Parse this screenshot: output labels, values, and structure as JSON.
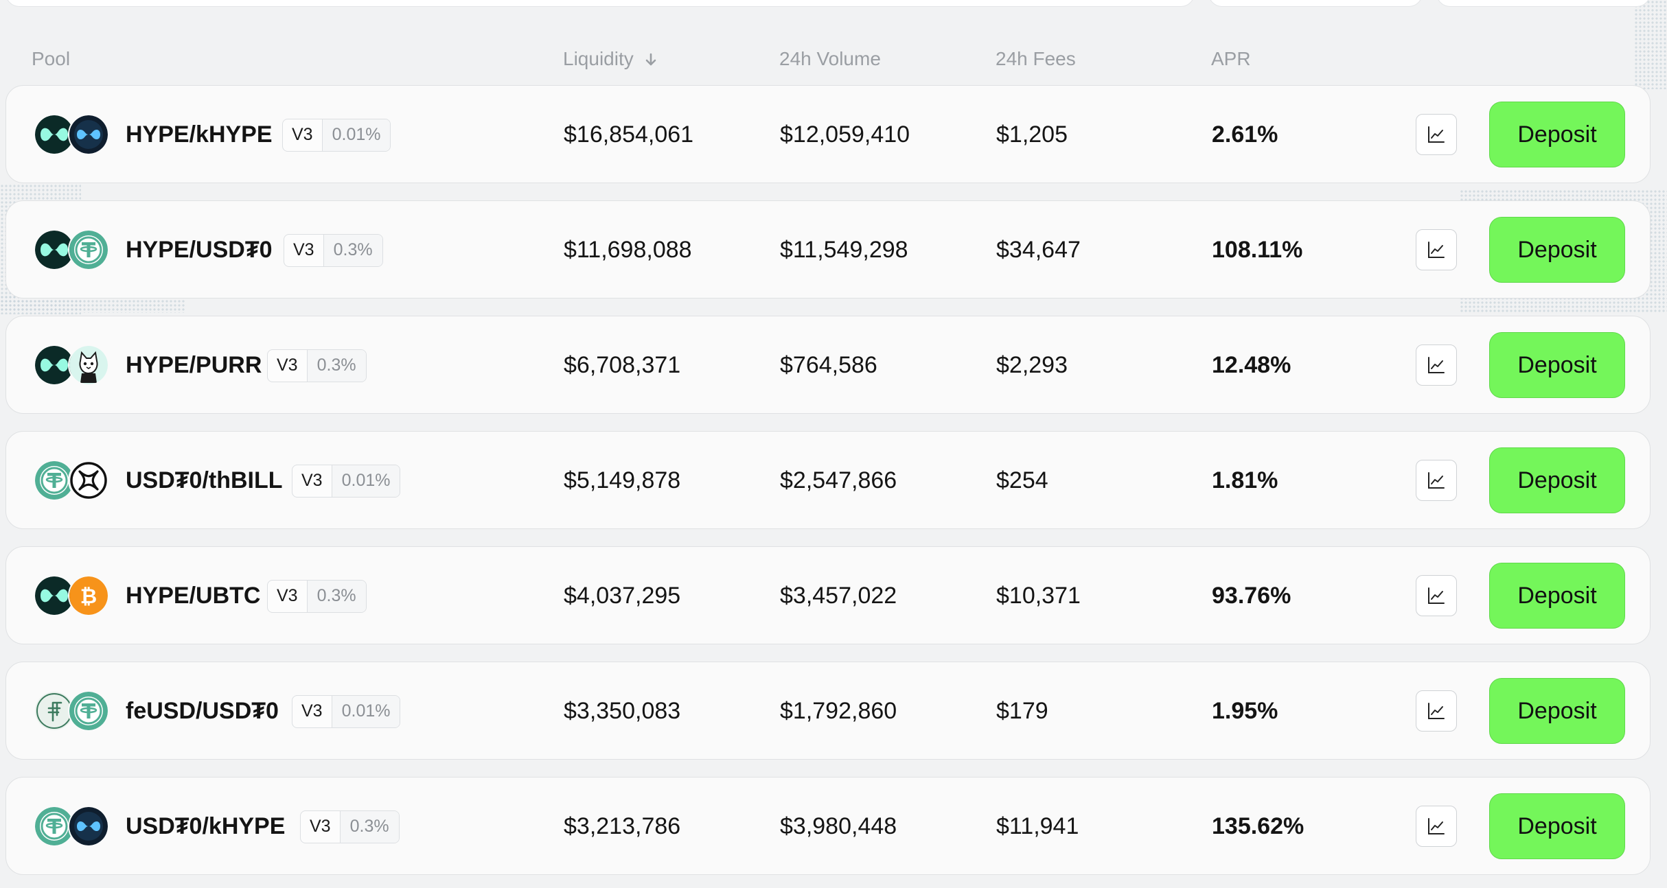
{
  "header": {
    "pool": "Pool",
    "liquidity": "Liquidity",
    "volume": "24h Volume",
    "fees": "24h Fees",
    "apr": "APR"
  },
  "colors": {
    "deposit_green": "#74f65a",
    "hype_dark": "#0b2a27",
    "hype_mint": "#97f9e1",
    "usdt0_green": "#50af95",
    "btc_orange": "#f7931a"
  },
  "deposit_label": "Deposit",
  "rows": [
    {
      "pool": "HYPE/kHYPE",
      "version": "V3",
      "fee": "0.01%",
      "liquidity": "$16,854,061",
      "volume": "$12,059,410",
      "fees": "$1,205",
      "apr": "2.61%",
      "token1": "hype-icon",
      "token2": "khype-icon"
    },
    {
      "pool": "HYPE/USD₮0",
      "version": "V3",
      "fee": "0.3%",
      "liquidity": "$11,698,088",
      "volume": "$11,549,298",
      "fees": "$34,647",
      "apr": "108.11%",
      "token1": "hype-icon",
      "token2": "usdt0-icon"
    },
    {
      "pool": "HYPE/PURR",
      "version": "V3",
      "fee": "0.3%",
      "liquidity": "$6,708,371",
      "volume": "$764,586",
      "fees": "$2,293",
      "apr": "12.48%",
      "token1": "hype-icon",
      "token2": "purr-icon"
    },
    {
      "pool": "USD₮0/thBILL",
      "version": "V3",
      "fee": "0.01%",
      "liquidity": "$5,149,878",
      "volume": "$2,547,866",
      "fees": "$254",
      "apr": "1.81%",
      "token1": "usdt0-icon",
      "token2": "thbill-icon"
    },
    {
      "pool": "HYPE/UBTC",
      "version": "V3",
      "fee": "0.3%",
      "liquidity": "$4,037,295",
      "volume": "$3,457,022",
      "fees": "$10,371",
      "apr": "93.76%",
      "token1": "hype-icon",
      "token2": "ubtc-icon"
    },
    {
      "pool": "feUSD/USD₮0",
      "version": "V3",
      "fee": "0.01%",
      "liquidity": "$3,350,083",
      "volume": "$1,792,860",
      "fees": "$179",
      "apr": "1.95%",
      "token1": "feusd-icon",
      "token2": "usdt0-icon"
    },
    {
      "pool": "USD₮0/kHYPE",
      "version": "V3",
      "fee": "0.3%",
      "liquidity": "$3,213,786",
      "volume": "$3,980,448",
      "fees": "$11,941",
      "apr": "135.62%",
      "token1": "usdt0-icon",
      "token2": "khype-icon"
    }
  ]
}
